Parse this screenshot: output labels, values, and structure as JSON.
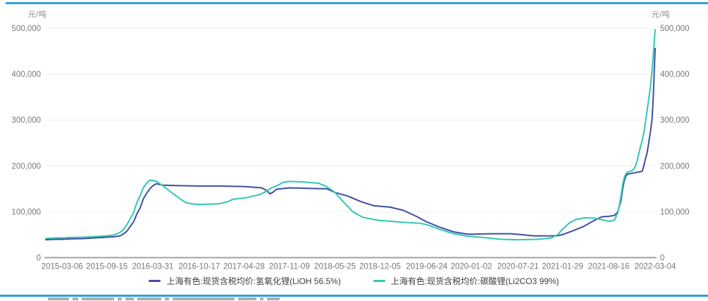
{
  "page": {
    "accent_rule_color": "#2F9EDD",
    "background": "#ffffff"
  },
  "chart_data": {
    "type": "line",
    "title": "",
    "y_unit_left": "元/吨",
    "y_unit_right": "元/吨",
    "ylabel": "元/吨",
    "xlabel": "",
    "ylim": [
      0,
      500000
    ],
    "y_ticks": [
      0,
      100000,
      200000,
      300000,
      400000,
      500000
    ],
    "y_tick_labels": [
      "0",
      "100,000",
      "200,000",
      "300,000",
      "400,000",
      "500,000"
    ],
    "x_tick_labels": [
      "2015-03-06",
      "2015-09-15",
      "2016-03-31",
      "2016-10-17",
      "2017-04-28",
      "2017-11-09",
      "2018-05-25",
      "2018-12-05",
      "2019-06-24",
      "2020-01-02",
      "2020-07-21",
      "2021-01-29",
      "2021-08-16",
      "2022-03-04"
    ],
    "x_start": "2014-12-26",
    "x_end": "2022-03-04",
    "grid": "faint horizontal gridlines at each y tick, solid gray zero baseline, dual y axes",
    "legend_position": "bottom-center",
    "colors": {
      "grid": "#EFEFF7",
      "axis": "#A3A3A3",
      "tick_text": "#76767F"
    },
    "series": [
      {
        "name": "上海有色:现货含税均价:氢氧化锂(LiOH 56.5%)",
        "color": "#3F4EA3",
        "points": [
          [
            "2014-12-26",
            39000
          ],
          [
            "2015-02-06",
            40000
          ],
          [
            "2015-03-06",
            40000
          ],
          [
            "2015-04-17",
            41000
          ],
          [
            "2015-06-05",
            41500
          ],
          [
            "2015-07-24",
            43000
          ],
          [
            "2015-09-15",
            44500
          ],
          [
            "2015-10-16",
            45500
          ],
          [
            "2015-10-30",
            46500
          ],
          [
            "2015-11-13",
            48000
          ],
          [
            "2015-11-27",
            52000
          ],
          [
            "2015-12-11",
            58000
          ],
          [
            "2015-12-25",
            68000
          ],
          [
            "2016-01-08",
            78000
          ],
          [
            "2016-01-22",
            95000
          ],
          [
            "2016-02-05",
            108000
          ],
          [
            "2016-02-19",
            128000
          ],
          [
            "2016-03-04",
            140000
          ],
          [
            "2016-03-18",
            150000
          ],
          [
            "2016-04-01",
            157000
          ],
          [
            "2016-04-15",
            161000
          ],
          [
            "2016-05-13",
            158000
          ],
          [
            "2016-07-08",
            157000
          ],
          [
            "2016-10-17",
            156000
          ],
          [
            "2017-01-06",
            156000
          ],
          [
            "2017-04-28",
            155000
          ],
          [
            "2017-07-14",
            152000
          ],
          [
            "2017-08-04",
            146000
          ],
          [
            "2017-08-18",
            139000
          ],
          [
            "2017-09-01",
            143000
          ],
          [
            "2017-09-15",
            149000
          ],
          [
            "2017-11-09",
            152000
          ],
          [
            "2018-02-02",
            151000
          ],
          [
            "2018-04-20",
            150000
          ],
          [
            "2018-05-25",
            142000
          ],
          [
            "2018-07-20",
            134000
          ],
          [
            "2018-09-14",
            122000
          ],
          [
            "2018-11-09",
            113000
          ],
          [
            "2019-01-18",
            110000
          ],
          [
            "2019-03-15",
            103000
          ],
          [
            "2019-05-10",
            90000
          ],
          [
            "2019-06-24",
            78000
          ],
          [
            "2019-08-16",
            67000
          ],
          [
            "2019-10-18",
            56000
          ],
          [
            "2019-12-13",
            51500
          ],
          [
            "2020-01-02",
            51000
          ],
          [
            "2020-03-20",
            52000
          ],
          [
            "2020-06-19",
            52000
          ],
          [
            "2020-08-07",
            50000
          ],
          [
            "2020-09-25",
            47500
          ],
          [
            "2020-12-11",
            47500
          ],
          [
            "2021-01-08",
            48000
          ],
          [
            "2021-01-29",
            50000
          ],
          [
            "2021-03-12",
            58000
          ],
          [
            "2021-04-30",
            68000
          ],
          [
            "2021-06-11",
            80000
          ],
          [
            "2021-07-16",
            89000
          ],
          [
            "2021-08-16",
            90000
          ],
          [
            "2021-09-10",
            92000
          ],
          [
            "2021-09-24",
            100000
          ],
          [
            "2021-10-08",
            125000
          ],
          [
            "2021-10-15",
            150000
          ],
          [
            "2021-10-22",
            168000
          ],
          [
            "2021-10-29",
            178000
          ],
          [
            "2021-11-05",
            182000
          ],
          [
            "2021-11-26",
            184000
          ],
          [
            "2021-12-17",
            186000
          ],
          [
            "2022-01-07",
            188000
          ],
          [
            "2022-01-14",
            200000
          ],
          [
            "2022-01-21",
            215000
          ],
          [
            "2022-01-28",
            228000
          ],
          [
            "2022-02-04",
            250000
          ],
          [
            "2022-02-11",
            272000
          ],
          [
            "2022-02-18",
            300000
          ],
          [
            "2022-02-22",
            330000
          ],
          [
            "2022-02-25",
            365000
          ],
          [
            "2022-03-01",
            420000
          ],
          [
            "2022-03-04",
            456000
          ]
        ]
      },
      {
        "name": "上海有色:现货含税均价:碳酸锂(Li2CO3 99%)",
        "color": "#30C7B2",
        "points": [
          [
            "2014-12-26",
            42000
          ],
          [
            "2015-02-06",
            43000
          ],
          [
            "2015-03-06",
            43000
          ],
          [
            "2015-04-17",
            44000
          ],
          [
            "2015-06-05",
            44500
          ],
          [
            "2015-07-24",
            46000
          ],
          [
            "2015-09-15",
            47500
          ],
          [
            "2015-10-16",
            49500
          ],
          [
            "2015-10-30",
            52000
          ],
          [
            "2015-11-13",
            56000
          ],
          [
            "2015-11-27",
            62000
          ],
          [
            "2015-12-11",
            72000
          ],
          [
            "2015-12-25",
            85000
          ],
          [
            "2016-01-08",
            98000
          ],
          [
            "2016-01-22",
            120000
          ],
          [
            "2016-02-05",
            135000
          ],
          [
            "2016-02-19",
            152000
          ],
          [
            "2016-03-04",
            162000
          ],
          [
            "2016-03-18",
            169000
          ],
          [
            "2016-04-01",
            168000
          ],
          [
            "2016-04-15",
            166000
          ],
          [
            "2016-05-13",
            157000
          ],
          [
            "2016-06-17",
            143000
          ],
          [
            "2016-07-22",
            130000
          ],
          [
            "2016-08-19",
            120000
          ],
          [
            "2016-09-16",
            117000
          ],
          [
            "2016-10-17",
            116000
          ],
          [
            "2017-01-06",
            117000
          ],
          [
            "2017-02-17",
            122000
          ],
          [
            "2017-03-10",
            127000
          ],
          [
            "2017-05-12",
            131000
          ],
          [
            "2017-07-07",
            138000
          ],
          [
            "2017-08-04",
            145000
          ],
          [
            "2017-08-25",
            152000
          ],
          [
            "2017-09-22",
            158000
          ],
          [
            "2017-10-13",
            164000
          ],
          [
            "2017-11-09",
            166000
          ],
          [
            "2018-01-05",
            165000
          ],
          [
            "2018-03-16",
            162000
          ],
          [
            "2018-04-13",
            156000
          ],
          [
            "2018-04-27",
            152000
          ],
          [
            "2018-05-25",
            142000
          ],
          [
            "2018-06-29",
            122000
          ],
          [
            "2018-08-10",
            100000
          ],
          [
            "2018-09-21",
            88000
          ],
          [
            "2018-11-09",
            83000
          ],
          [
            "2018-12-05",
            81000
          ],
          [
            "2019-03-15",
            77000
          ],
          [
            "2019-05-25",
            75000
          ],
          [
            "2019-06-24",
            72000
          ],
          [
            "2019-08-16",
            62000
          ],
          [
            "2019-10-18",
            52000
          ],
          [
            "2019-12-13",
            47000
          ],
          [
            "2020-02-21",
            44000
          ],
          [
            "2020-05-08",
            40000
          ],
          [
            "2020-07-21",
            39000
          ],
          [
            "2020-10-16",
            40000
          ],
          [
            "2020-12-11",
            43000
          ],
          [
            "2021-01-08",
            50000
          ],
          [
            "2021-01-29",
            62000
          ],
          [
            "2021-02-26",
            75000
          ],
          [
            "2021-03-26",
            83000
          ],
          [
            "2021-05-07",
            87000
          ],
          [
            "2021-06-18",
            86000
          ],
          [
            "2021-07-23",
            82000
          ],
          [
            "2021-08-16",
            79000
          ],
          [
            "2021-09-10",
            82000
          ],
          [
            "2021-09-24",
            98000
          ],
          [
            "2021-10-01",
            115000
          ],
          [
            "2021-10-08",
            135000
          ],
          [
            "2021-10-15",
            160000
          ],
          [
            "2021-10-22",
            175000
          ],
          [
            "2021-10-29",
            183000
          ],
          [
            "2021-11-05",
            186000
          ],
          [
            "2021-11-26",
            190000
          ],
          [
            "2021-12-03",
            194000
          ],
          [
            "2021-12-10",
            200000
          ],
          [
            "2021-12-17",
            212000
          ],
          [
            "2021-12-24",
            228000
          ],
          [
            "2022-01-07",
            255000
          ],
          [
            "2022-01-14",
            272000
          ],
          [
            "2022-01-21",
            295000
          ],
          [
            "2022-01-28",
            320000
          ],
          [
            "2022-02-04",
            345000
          ],
          [
            "2022-02-11",
            370000
          ],
          [
            "2022-02-18",
            405000
          ],
          [
            "2022-02-25",
            450000
          ],
          [
            "2022-03-04",
            497000
          ]
        ]
      }
    ]
  },
  "legend": {
    "items": [
      {
        "label": "上海有色:现货含税均价:氢氧化锂(LiOH 56.5%)"
      },
      {
        "label": "上海有色:现货含税均价:碳酸锂(Li2CO3 99%)"
      }
    ]
  },
  "footer": {
    "note": "clipped illegible gray text below bottom rule"
  }
}
